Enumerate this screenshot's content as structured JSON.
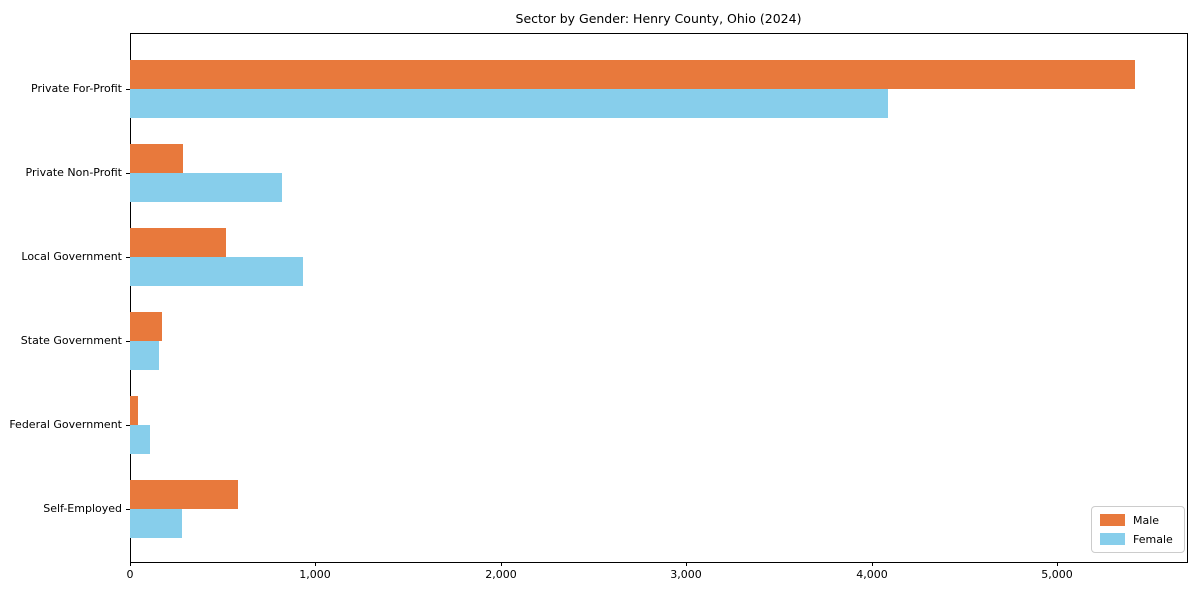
{
  "title": "Sector by Gender: Henry County, Ohio (2024)",
  "chart_data": {
    "type": "bar",
    "orientation": "horizontal",
    "title": "Sector by Gender: Henry County, Ohio (2024)",
    "xlabel": "",
    "ylabel": "",
    "categories": [
      "Private For-Profit",
      "Private Non-Profit",
      "Local Government",
      "State Government",
      "Federal Government",
      "Self-Employed"
    ],
    "series": [
      {
        "name": "Male",
        "color": "#e8793c",
        "values": [
          5420,
          287,
          516,
          171,
          45,
          584
        ]
      },
      {
        "name": "Female",
        "color": "#87ceeb",
        "values": [
          4090,
          818,
          934,
          158,
          108,
          282
        ]
      }
    ],
    "xlim": [
      0,
      5700
    ],
    "x_ticks": [
      0,
      1000,
      2000,
      3000,
      4000,
      5000
    ],
    "x_tick_labels": [
      "0",
      "1,000",
      "2,000",
      "3,000",
      "4,000",
      "5,000"
    ],
    "grid": false,
    "legend": {
      "position": "lower right",
      "entries": [
        "Male",
        "Female"
      ]
    }
  },
  "colors": {
    "male": "#e8793c",
    "female": "#87ceeb",
    "spine": "#000000",
    "legend_border": "#cccccc",
    "background": "#ffffff"
  }
}
